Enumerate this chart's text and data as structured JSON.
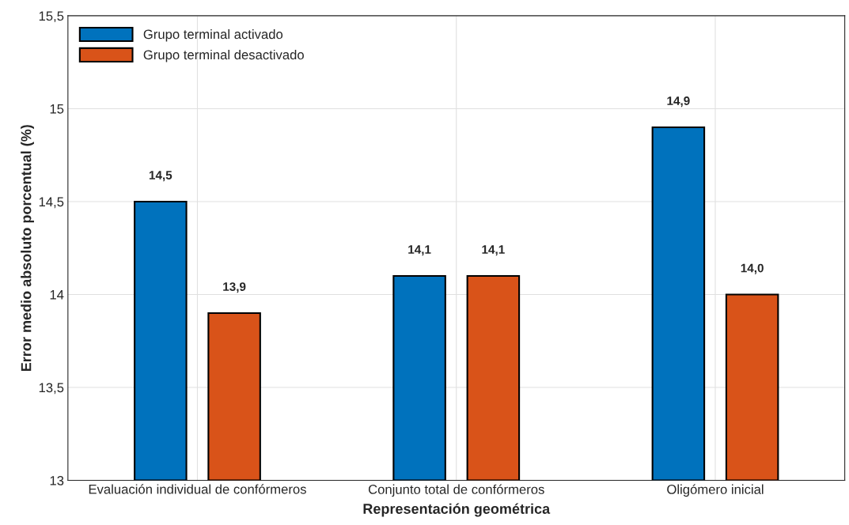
{
  "chart_data": {
    "type": "bar",
    "xlabel": "Representación geométrica",
    "ylabel": "Error medio absoluto porcentual (%)",
    "categories": [
      "Evaluación individual de confórmeros",
      "Conjunto total de confórmeros",
      "Oligómero inicial"
    ],
    "series": [
      {
        "name": "Grupo terminal activado",
        "color": "#0072bd",
        "values": [
          14.5,
          14.1,
          14.9
        ],
        "value_labels": [
          "14,5",
          "14,1",
          "14,9"
        ]
      },
      {
        "name": "Grupo terminal desactivado",
        "color": "#d95319",
        "values": [
          13.9,
          14.1,
          14.0
        ],
        "value_labels": [
          "13,9",
          "14,1",
          "14,0"
        ]
      }
    ],
    "ylim": [
      13,
      15.5
    ],
    "yticks": [
      13,
      {
        "value": 13.5,
        "label": "13,5"
      },
      14,
      {
        "value": 14.5,
        "label": "14,5"
      },
      15,
      {
        "value": 15.5,
        "label": "15,5"
      }
    ],
    "grid": true,
    "legend": "top left"
  }
}
